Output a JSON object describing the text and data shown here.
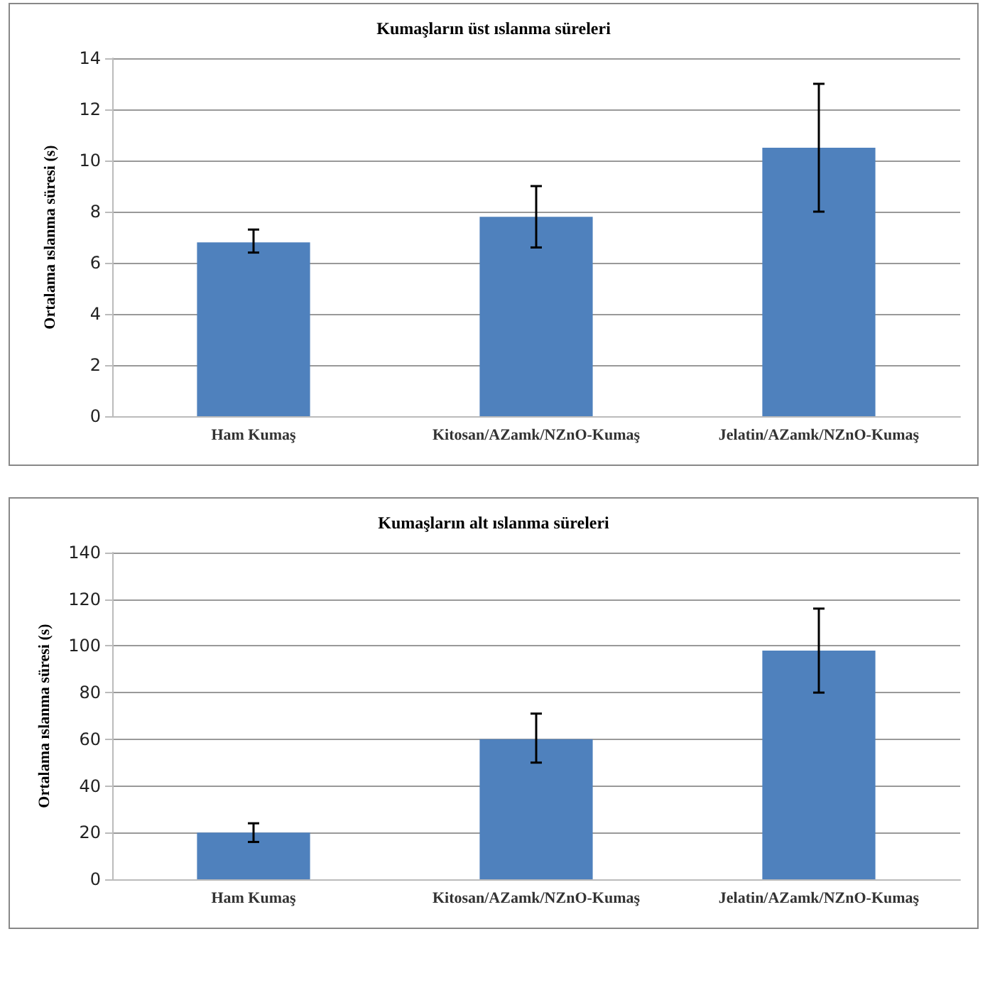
{
  "chart_data": [
    {
      "type": "bar",
      "title": "Kumaşların üst ıslanma süreleri",
      "ylabel": "Ortalama ıslanma süresi (s)",
      "categories": [
        "Ham Kumaş",
        "Kitosan/AZamk/NZnO-Kumaş",
        "Jelatin/AZamk/NZnO-Kumaş"
      ],
      "values": [
        6.8,
        7.8,
        10.5
      ],
      "errors": [
        [
          6.4,
          7.3
        ],
        [
          6.6,
          9.0
        ],
        [
          8.0,
          13.0
        ]
      ],
      "color": "#4f81bd",
      "ylim": [
        0,
        14
      ],
      "yticks": [
        0,
        2,
        4,
        6,
        8,
        10,
        12,
        14
      ],
      "grid": "y"
    },
    {
      "type": "bar",
      "title": "Kumaşların alt ıslanma süreleri",
      "ylabel": "Ortalama ıslanma süresi (s)",
      "categories": [
        "Ham Kumaş",
        "Kitosan/AZamk/NZnO-Kumaş",
        "Jelatin/AZamk/NZnO-Kumaş"
      ],
      "values": [
        20,
        60,
        98
      ],
      "errors": [
        [
          16,
          24
        ],
        [
          50,
          71
        ],
        [
          80,
          116
        ]
      ],
      "color": "#4f81bd",
      "ylim": [
        0,
        140
      ],
      "yticks": [
        0,
        20,
        40,
        60,
        80,
        100,
        120,
        140
      ],
      "grid": "y"
    }
  ]
}
